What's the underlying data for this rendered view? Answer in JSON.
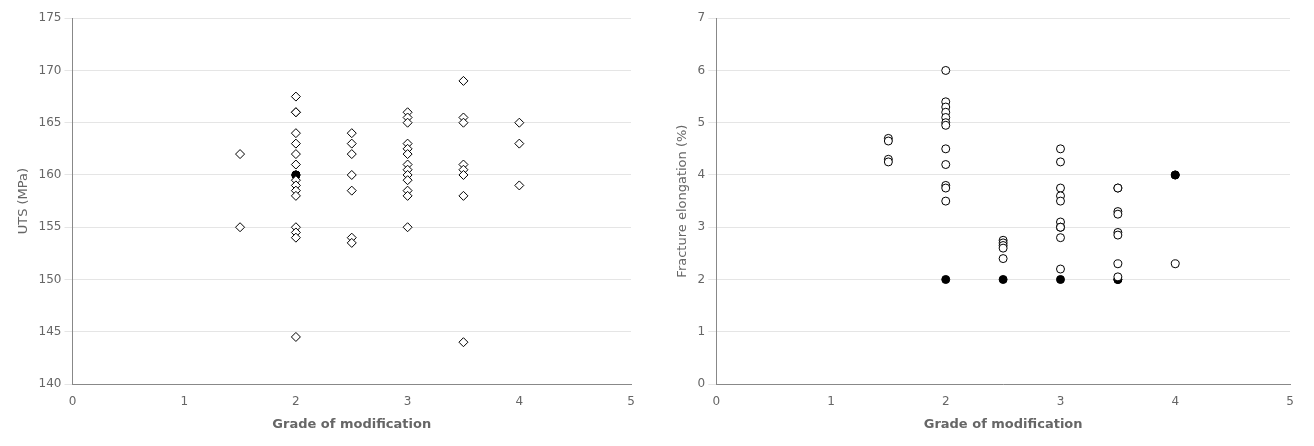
{
  "chart_data": [
    {
      "type": "scatter",
      "xlabel": "Grade of modification",
      "ylabel": "UTS (MPa)",
      "xlim": [
        0,
        5
      ],
      "ylim": [
        140,
        175
      ],
      "xticks": [
        0,
        1,
        2,
        3,
        4,
        5
      ],
      "yticks": [
        140,
        145,
        150,
        155,
        160,
        165,
        170,
        175
      ],
      "grid": "y",
      "series": [
        {
          "marker": "diamond",
          "color": "white",
          "x": [
            1.5,
            1.5,
            2.0,
            2.0,
            2.0,
            2.0,
            2.0,
            2.0,
            2.0,
            2.0,
            2.0,
            2.0,
            2.0,
            2.0,
            2.0,
            2.0,
            2.5,
            2.5,
            2.5,
            2.5,
            2.5,
            2.5,
            2.5,
            3.0,
            3.0,
            3.0,
            3.0,
            3.0,
            3.0,
            3.0,
            3.0,
            3.0,
            3.0,
            3.0,
            3.0,
            3.0,
            3.5,
            3.5,
            3.5,
            3.5,
            3.5,
            3.5,
            3.5,
            4.0,
            4.0,
            4.0
          ],
          "values": [
            162,
            155,
            167.5,
            166,
            164,
            163,
            162,
            161,
            159.5,
            159,
            158.5,
            158,
            155,
            154.5,
            154,
            166,
            164,
            163,
            162,
            160,
            158.5,
            154,
            153.5,
            166,
            165.5,
            165,
            163,
            162.5,
            162,
            161,
            160.5,
            160,
            159.5,
            158.5,
            155,
            158,
            169,
            165.5,
            165,
            161,
            160.5,
            160,
            158,
            165,
            163,
            159
          ]
        },
        {
          "marker": "circle",
          "color": "black",
          "x": [
            2.0,
            2.0,
            2.0
          ],
          "values": [
            160,
            160,
            160
          ]
        },
        {
          "marker": "diamond",
          "color": "white",
          "x": [
            2.0,
            3.5
          ],
          "values": [
            144.5,
            144
          ]
        }
      ]
    },
    {
      "type": "scatter",
      "xlabel": "Grade of modification",
      "ylabel": "Fracture elongation (%)",
      "xlim": [
        0,
        5
      ],
      "ylim": [
        0,
        7
      ],
      "xticks": [
        0,
        1,
        2,
        3,
        4,
        5
      ],
      "yticks": [
        0,
        1,
        2,
        3,
        4,
        5,
        6,
        7
      ],
      "grid": "y",
      "series": [
        {
          "marker": "circle",
          "color": "white",
          "x": [
            1.5,
            1.5,
            1.5,
            1.5,
            2.0,
            2.0,
            2.0,
            2.0,
            2.0,
            2.0,
            2.0,
            2.0,
            2.0,
            2.0,
            2.0,
            2.0,
            2.5,
            2.5,
            2.5,
            2.5,
            2.5,
            3.0,
            3.0,
            3.0,
            3.0,
            3.0,
            3.0,
            3.0,
            3.0,
            3.0,
            3.0,
            3.0,
            3.5,
            3.5,
            3.5,
            3.5,
            3.5,
            3.5,
            3.5,
            3.5,
            4.0
          ],
          "values": [
            4.7,
            4.65,
            4.3,
            4.25,
            6.0,
            5.4,
            5.3,
            5.2,
            5.1,
            5.0,
            4.95,
            4.5,
            4.2,
            3.8,
            3.75,
            3.5,
            2.75,
            2.7,
            2.65,
            2.6,
            2.4,
            4.5,
            4.25,
            3.75,
            3.6,
            3.5,
            3.1,
            3.0,
            3.0,
            3.0,
            2.8,
            2.2,
            3.75,
            3.75,
            3.3,
            3.25,
            2.9,
            2.85,
            2.3,
            2.05,
            2.3
          ]
        },
        {
          "marker": "circle",
          "color": "black",
          "x": [
            2.0,
            2.5,
            3.0,
            3.5,
            3.5,
            4.0,
            4.0
          ],
          "values": [
            2.0,
            2.0,
            2.0,
            2.0,
            2.0,
            4.0,
            4.0
          ]
        }
      ]
    }
  ]
}
